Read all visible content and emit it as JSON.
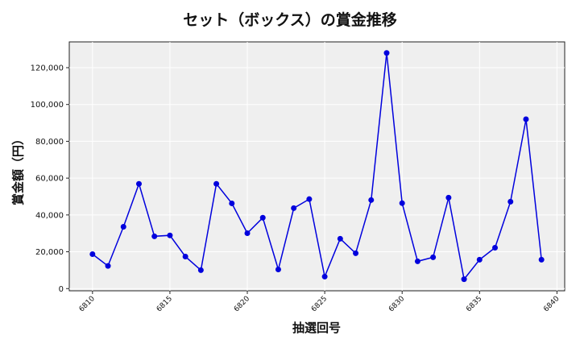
{
  "chart_data": {
    "type": "line",
    "title": "セット（ボックス）の賞金推移",
    "xlabel": "抽選回号",
    "ylabel": "賞金額（円）",
    "x": [
      6810,
      6811,
      6812,
      6813,
      6814,
      6815,
      6816,
      6817,
      6818,
      6819,
      6820,
      6821,
      6822,
      6823,
      6824,
      6825,
      6826,
      6827,
      6828,
      6829,
      6830,
      6831,
      6832,
      6833,
      6834,
      6835,
      6836,
      6837,
      6838,
      6839
    ],
    "series": [
      {
        "name": "賞金額",
        "color": "#0000dd",
        "values": [
          18700,
          12300,
          33600,
          56900,
          28400,
          28900,
          17400,
          10000,
          56900,
          46300,
          30100,
          38500,
          10400,
          43700,
          48600,
          6500,
          27100,
          19200,
          48100,
          128000,
          46400,
          14800,
          17000,
          49400,
          5100,
          15700,
          22200,
          47200,
          92000,
          15700
        ]
      }
    ],
    "xticks": [
      6810,
      6815,
      6820,
      6825,
      6830,
      6835,
      6840
    ],
    "yticks": [
      0,
      20000,
      40000,
      60000,
      80000,
      100000,
      120000
    ],
    "ytick_labels": [
      "0",
      "20,000",
      "40,000",
      "60,000",
      "80,000",
      "100,000",
      "120,000"
    ],
    "xlim": [
      6808.5,
      6840.5
    ],
    "ylim": [
      -1200,
      134000
    ],
    "grid": true,
    "legend": null,
    "background": "#efefef"
  }
}
